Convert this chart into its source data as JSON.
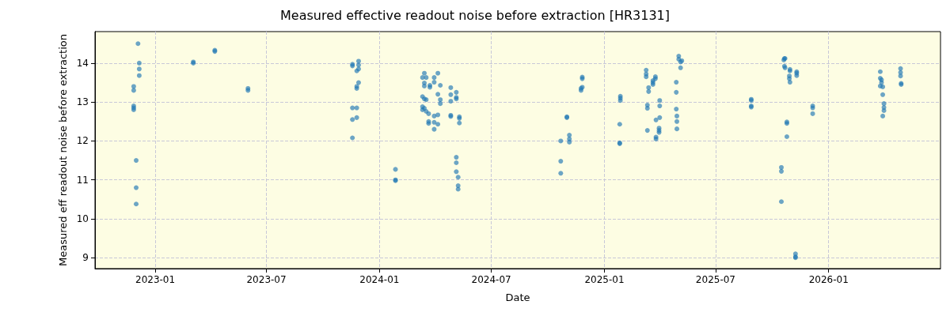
{
  "chart_data": {
    "type": "scatter",
    "title": "Measured effective readout noise before extraction [HR3131]",
    "xlabel": "Date",
    "ylabel": "Measured eff readout noise before extraction",
    "xlim": [
      "2022-09-25",
      "2026-07-02"
    ],
    "xticks": [
      "2023-01",
      "2023-07",
      "2024-01",
      "2024-07",
      "2025-01",
      "2025-07",
      "2026-01"
    ],
    "ylim": [
      8.72,
      14.81
    ],
    "yticks": [
      9,
      10,
      11,
      12,
      13,
      14
    ],
    "grid": true,
    "marker": "circle",
    "series": [
      {
        "color": "#1f77b4",
        "x": [
          "2022-12-04",
          "2022-12-06",
          "2022-12-06",
          "2022-12-06",
          "2022-11-27",
          "2022-11-27",
          "2022-11-27",
          "2022-11-27",
          "2022-11-27",
          "2022-12-01",
          "2022-12-01",
          "2022-12-01",
          "2023-03-04",
          "2023-03-04",
          "2023-04-08",
          "2023-04-08",
          "2023-06-01",
          "2023-06-01",
          "2023-11-18",
          "2023-11-18",
          "2023-11-28",
          "2023-11-28",
          "2023-11-28",
          "2023-11-25",
          "2023-11-28",
          "2023-11-25",
          "2023-11-25",
          "2023-11-18",
          "2023-11-25",
          "2023-11-25",
          "2023-11-18",
          "2023-11-18",
          "2024-01-27",
          "2024-01-27",
          "2024-01-27",
          "2024-03-14",
          "2024-03-11",
          "2024-03-17",
          "2024-03-14",
          "2024-03-14",
          "2024-03-23",
          "2024-03-23",
          "2024-03-30",
          "2024-04-05",
          "2024-03-30",
          "2024-04-09",
          "2024-04-05",
          "2024-04-09",
          "2024-04-09",
          "2024-03-11",
          "2024-03-14",
          "2024-03-17",
          "2024-03-11",
          "2024-03-14",
          "2024-03-11",
          "2024-03-17",
          "2024-03-21",
          "2024-03-21",
          "2024-03-21",
          "2024-03-30",
          "2024-04-05",
          "2024-03-30",
          "2024-04-05",
          "2024-03-30",
          "2024-04-26",
          "2024-04-26",
          "2024-05-05",
          "2024-05-05",
          "2024-05-05",
          "2024-04-26",
          "2024-04-26",
          "2024-04-26",
          "2024-05-10",
          "2024-05-10",
          "2024-05-10",
          "2024-05-05",
          "2024-05-05",
          "2024-05-05",
          "2024-05-08",
          "2024-05-08",
          "2024-05-08",
          "2024-10-22",
          "2024-10-22",
          "2024-10-22",
          "2024-11-05",
          "2024-11-05",
          "2024-11-05",
          "2024-11-01",
          "2024-11-01",
          "2024-11-26",
          "2024-11-26",
          "2024-11-24",
          "2024-11-24",
          "2024-11-26",
          "2025-01-27",
          "2025-01-27",
          "2025-01-27",
          "2025-01-26",
          "2025-01-26",
          "2025-01-26",
          "2025-03-10",
          "2025-03-10",
          "2025-03-10",
          "2025-03-12",
          "2025-03-12",
          "2025-03-12",
          "2025-03-14",
          "2025-03-14",
          "2025-03-21",
          "2025-03-21",
          "2025-03-21",
          "2025-03-25",
          "2025-03-25",
          "2025-03-26",
          "2025-03-26",
          "2025-03-26",
          "2025-04-01",
          "2025-04-01",
          "2025-04-01",
          "2025-03-31",
          "2025-03-31",
          "2025-03-31",
          "2025-04-28",
          "2025-04-28",
          "2025-04-28",
          "2025-04-29",
          "2025-04-29",
          "2025-04-29",
          "2025-05-02",
          "2025-05-02",
          "2025-05-07",
          "2025-05-05",
          "2025-05-05",
          "2025-08-28",
          "2025-08-28",
          "2025-08-28",
          "2025-08-28",
          "2025-10-21",
          "2025-10-22",
          "2025-10-20",
          "2025-10-21",
          "2025-10-22",
          "2025-10-30",
          "2025-10-30",
          "2025-10-29",
          "2025-10-29",
          "2025-10-30",
          "2025-11-10",
          "2025-11-10",
          "2025-11-10",
          "2025-10-25",
          "2025-10-25",
          "2025-10-25",
          "2025-10-16",
          "2025-10-16",
          "2025-10-16",
          "2025-11-08",
          "2025-11-08",
          "2025-11-08",
          "2025-12-06",
          "2025-12-06",
          "2025-12-06",
          "2026-03-26",
          "2026-03-26",
          "2026-03-28",
          "2026-03-28",
          "2026-03-26",
          "2026-03-30",
          "2026-03-30",
          "2026-04-01",
          "2026-04-01",
          "2026-04-01",
          "2026-03-30",
          "2026-04-28",
          "2026-04-28",
          "2026-04-28",
          "2026-04-29",
          "2026-04-29"
        ],
        "values": [
          14.5,
          14.0,
          13.85,
          13.68,
          13.4,
          13.3,
          12.9,
          12.85,
          12.8,
          11.5,
          10.8,
          10.38,
          14.03,
          14.0,
          14.33,
          14.3,
          13.35,
          13.3,
          13.97,
          13.93,
          14.05,
          13.95,
          13.85,
          13.8,
          13.5,
          13.4,
          13.35,
          12.85,
          12.85,
          12.6,
          12.55,
          12.08,
          11.27,
          11.0,
          10.98,
          13.74,
          13.63,
          13.63,
          13.49,
          13.41,
          13.43,
          13.38,
          13.63,
          13.74,
          13.51,
          13.43,
          13.2,
          13.06,
          12.96,
          13.14,
          13.08,
          13.06,
          12.88,
          12.84,
          12.8,
          12.76,
          12.7,
          12.5,
          12.45,
          12.64,
          12.67,
          12.48,
          12.43,
          12.3,
          13.37,
          13.19,
          13.25,
          13.12,
          13.08,
          13.02,
          12.66,
          12.63,
          12.62,
          12.58,
          12.46,
          11.58,
          11.44,
          11.21,
          11.07,
          10.85,
          10.76,
          12.0,
          11.48,
          11.17,
          12.15,
          12.05,
          11.97,
          12.62,
          12.6,
          13.64,
          13.6,
          13.35,
          13.3,
          13.38,
          13.15,
          13.1,
          13.04,
          12.43,
          11.93,
          11.95,
          13.82,
          13.72,
          13.65,
          12.92,
          12.84,
          12.27,
          13.37,
          13.27,
          13.55,
          13.5,
          13.45,
          13.65,
          13.6,
          12.54,
          12.1,
          12.05,
          13.04,
          12.9,
          12.6,
          12.33,
          12.27,
          12.22,
          13.51,
          13.25,
          12.82,
          12.64,
          12.5,
          12.31,
          14.18,
          14.1,
          14.06,
          14.03,
          13.88,
          13.07,
          13.04,
          12.9,
          12.87,
          14.12,
          14.12,
          14.08,
          13.92,
          13.88,
          13.84,
          13.8,
          13.67,
          13.6,
          13.51,
          13.78,
          13.74,
          13.68,
          12.49,
          12.45,
          12.11,
          11.32,
          11.22,
          10.44,
          9.1,
          9.02,
          9.0,
          12.9,
          12.85,
          12.7,
          13.78,
          13.61,
          13.57,
          13.5,
          13.41,
          13.39,
          13.19,
          12.96,
          12.86,
          12.78,
          12.64,
          13.86,
          13.76,
          13.67,
          13.45,
          13.48
        ]
      }
    ]
  }
}
